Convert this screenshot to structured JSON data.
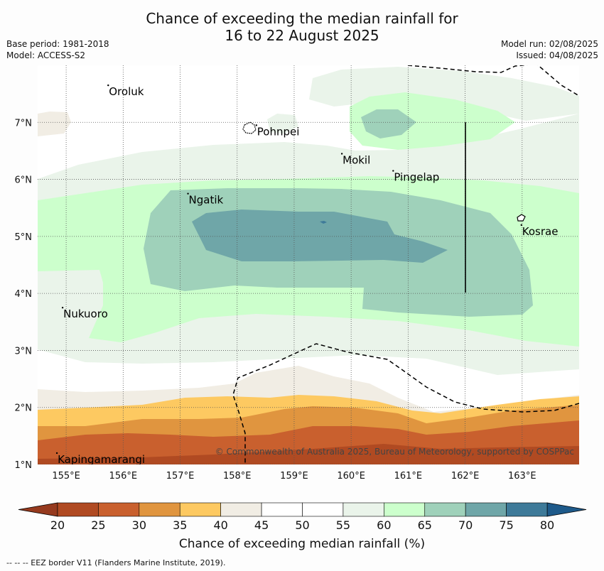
{
  "title": {
    "line1": "Chance of exceeding the median rainfall for",
    "line2": "16 to 22 August 2025"
  },
  "meta": {
    "base_period": "Base period: 1981-2018",
    "model": "Model: ACCESS-S2",
    "model_run": "Model run: 02/08/2025",
    "issued": "Issued: 04/08/2025"
  },
  "map": {
    "lon_range": [
      154.5,
      164
    ],
    "lat_range": [
      1,
      8
    ],
    "lon_ticks": [
      "155°E",
      "156°E",
      "157°E",
      "158°E",
      "159°E",
      "160°E",
      "161°E",
      "162°E",
      "163°E"
    ],
    "lat_ticks": [
      "1°N",
      "2°N",
      "3°N",
      "4°N",
      "5°N",
      "6°N",
      "7°N"
    ],
    "places": [
      {
        "name": "Oroluk",
        "lon": 155.75,
        "lat": 7.6
      },
      {
        "name": "Pohnpei",
        "lon": 158.35,
        "lat": 6.9
      },
      {
        "name": "Mokil",
        "lon": 159.85,
        "lat": 6.4
      },
      {
        "name": "Pingelap",
        "lon": 160.75,
        "lat": 6.1
      },
      {
        "name": "Ngatik",
        "lon": 157.15,
        "lat": 5.7
      },
      {
        "name": "Kosrae",
        "lon": 163.0,
        "lat": 5.15
      },
      {
        "name": "Nukuoro",
        "lon": 154.95,
        "lat": 3.7
      },
      {
        "name": "Kapingamarangi",
        "lon": 154.85,
        "lat": 1.15
      }
    ],
    "copyright": "© Commonwealth of Australia 2025, Bureau of Meteorology, supported by COSPPac"
  },
  "colorbar": {
    "ticks": [
      "20",
      "25",
      "30",
      "35",
      "40",
      "45",
      "50",
      "55",
      "60",
      "65",
      "70",
      "75",
      "80"
    ],
    "colors": [
      "#b04a22",
      "#c9602e",
      "#e0953f",
      "#fdc961",
      "#f1ede4",
      "#ffffff",
      "#ffffff",
      "#eaf4ea",
      "#ccffcc",
      "#9fd1ba",
      "#6fa6a8",
      "#3e7a99"
    ],
    "under_color": "#963a1e",
    "over_color": "#1e5a8a",
    "label": "Chance of exceeding median rainfall (%)"
  },
  "footnote": "--  --  -- EEZ border V11 (Flanders Marine Institute, 2019)."
}
